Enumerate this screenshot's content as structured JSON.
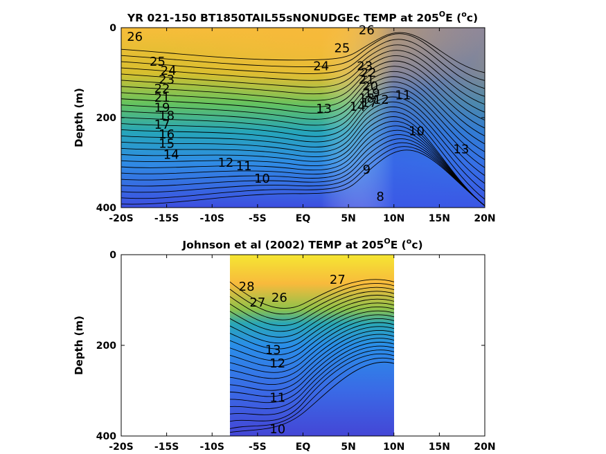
{
  "chart_data": [
    {
      "type": "contour",
      "title": "YR 021-150 BT1850TAIL55sNONUDGEc TEMP at 205°E (°c)",
      "title_parts": [
        "YR 021-150 BT1850TAIL55sNONUDGEc TEMP at 205",
        "O",
        "E (",
        "o",
        "c)"
      ],
      "xlabel": "",
      "ylabel": "Depth (m)",
      "xlim": [
        -20,
        20
      ],
      "ylim": [
        400,
        0
      ],
      "y_reversed": true,
      "x_ticks": [
        -20,
        -15,
        -10,
        -5,
        0,
        5,
        10,
        15,
        20
      ],
      "x_tick_labels": [
        "-20S",
        "-15S",
        "-10S",
        "-5S",
        "EQ",
        "5N",
        "10N",
        "15N",
        "20N"
      ],
      "y_ticks": [
        0,
        200,
        400
      ],
      "y_tick_labels": [
        "0",
        "200",
        "400"
      ],
      "data_x_range": [
        -20,
        20
      ],
      "colormap": "parula",
      "contour_labels": [
        {
          "text": "26",
          "x": -18.5,
          "y": 20
        },
        {
          "text": "25",
          "x": -16.0,
          "y": 75
        },
        {
          "text": "24",
          "x": -14.8,
          "y": 95
        },
        {
          "text": "23",
          "x": -15.0,
          "y": 115
        },
        {
          "text": "22",
          "x": -15.5,
          "y": 135
        },
        {
          "text": "21",
          "x": -15.5,
          "y": 155
        },
        {
          "text": "19",
          "x": -15.5,
          "y": 178
        },
        {
          "text": "18",
          "x": -15.0,
          "y": 195
        },
        {
          "text": "17",
          "x": -15.5,
          "y": 215
        },
        {
          "text": "16",
          "x": -15.0,
          "y": 237
        },
        {
          "text": "15",
          "x": -15.0,
          "y": 258
        },
        {
          "text": "14",
          "x": -14.5,
          "y": 282
        },
        {
          "text": "12",
          "x": -8.5,
          "y": 300
        },
        {
          "text": "11",
          "x": -6.5,
          "y": 308
        },
        {
          "text": "10",
          "x": -4.5,
          "y": 335
        },
        {
          "text": "13",
          "x": 2.3,
          "y": 180
        },
        {
          "text": "24",
          "x": 2.0,
          "y": 85
        },
        {
          "text": "25",
          "x": 4.3,
          "y": 45
        },
        {
          "text": "26",
          "x": 7.0,
          "y": 5
        },
        {
          "text": "23",
          "x": 6.8,
          "y": 85
        },
        {
          "text": "22",
          "x": 7.2,
          "y": 100
        },
        {
          "text": "21",
          "x": 7.0,
          "y": 115
        },
        {
          "text": "20",
          "x": 7.4,
          "y": 130
        },
        {
          "text": "19",
          "x": 7.6,
          "y": 145
        },
        {
          "text": "18",
          "x": 7.0,
          "y": 157
        },
        {
          "text": "17",
          "x": 7.3,
          "y": 167
        },
        {
          "text": "14",
          "x": 6.0,
          "y": 175
        },
        {
          "text": "12",
          "x": 8.6,
          "y": 160
        },
        {
          "text": "11",
          "x": 11.0,
          "y": 150
        },
        {
          "text": "10",
          "x": 12.5,
          "y": 230
        },
        {
          "text": "13",
          "x": 17.4,
          "y": 270
        },
        {
          "text": "9",
          "x": 7.0,
          "y": 315
        },
        {
          "text": "8",
          "x": 8.5,
          "y": 375
        }
      ]
    },
    {
      "type": "contour",
      "title": "Johnson et al (2002) TEMP at 205°E (°c)",
      "title_parts": [
        "Johnson et al (2002) TEMP at 205",
        "O",
        "E (",
        "o",
        "c)"
      ],
      "xlabel": "",
      "ylabel": "Depth (m)",
      "xlim": [
        -20,
        20
      ],
      "ylim": [
        400,
        0
      ],
      "y_reversed": true,
      "x_ticks": [
        -20,
        -15,
        -10,
        -5,
        0,
        5,
        10,
        15,
        20
      ],
      "x_tick_labels": [
        "-20S",
        "-15S",
        "-10S",
        "-5S",
        "EQ",
        "5N",
        "10N",
        "15N",
        "20N"
      ],
      "y_ticks": [
        0,
        200,
        400
      ],
      "y_tick_labels": [
        "0",
        "200",
        "400"
      ],
      "data_x_range": [
        -8,
        10
      ],
      "colormap": "parula",
      "contour_labels": [
        {
          "text": "28",
          "x": -6.2,
          "y": 70
        },
        {
          "text": "27",
          "x": -5.0,
          "y": 105
        },
        {
          "text": "26",
          "x": -2.6,
          "y": 95
        },
        {
          "text": "27",
          "x": 3.8,
          "y": 55
        },
        {
          "text": "13",
          "x": -3.3,
          "y": 210
        },
        {
          "text": "12",
          "x": -2.8,
          "y": 240
        },
        {
          "text": "11",
          "x": -2.8,
          "y": 315
        },
        {
          "text": "10",
          "x": -2.8,
          "y": 385
        }
      ]
    }
  ]
}
